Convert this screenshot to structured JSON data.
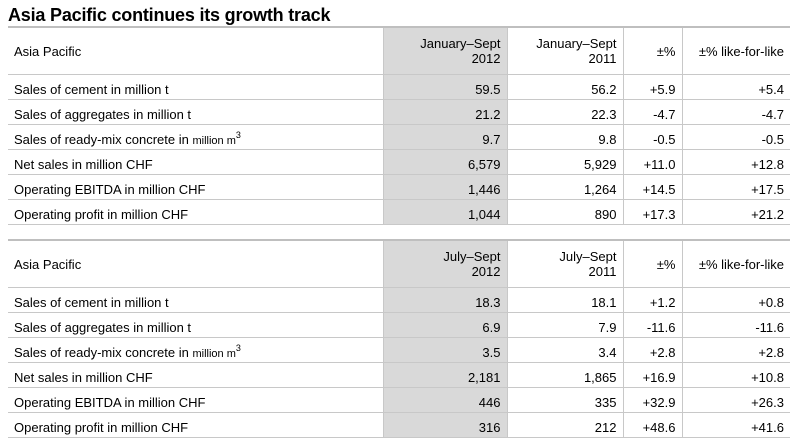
{
  "title": "Asia Pacific continues its growth track",
  "tables": [
    {
      "header": {
        "region": "Asia Pacific",
        "col1_line1": "January–Sept",
        "col1_line2": "2012",
        "col2_line1": "January–Sept",
        "col2_line2": "2011",
        "col3": "±%",
        "col4": "±% like-for-like"
      },
      "rows": [
        {
          "label": "Sales of cement in million t",
          "v2012": "59.5",
          "v2011": "56.2",
          "pct": "+5.9",
          "lfl": "+5.4"
        },
        {
          "label": "Sales of aggregates in million t",
          "v2012": "21.2",
          "v2011": "22.3",
          "pct": "-4.7",
          "lfl": "-4.7"
        },
        {
          "label": "Sales of ready-mix concrete in ",
          "label_small": "million m",
          "label_sup": "3",
          "v2012": "9.7",
          "v2011": "9.8",
          "pct": "-0.5",
          "lfl": "-0.5"
        },
        {
          "label": "Net sales in million CHF",
          "v2012": "6,579",
          "v2011": "5,929",
          "pct": "+11.0",
          "lfl": "+12.8"
        },
        {
          "label": "Operating EBITDA in million CHF",
          "v2012": "1,446",
          "v2011": "1,264",
          "pct": "+14.5",
          "lfl": "+17.5"
        },
        {
          "label": "Operating profit in million CHF",
          "v2012": "1,044",
          "v2011": "890",
          "pct": "+17.3",
          "lfl": "+21.2"
        }
      ]
    },
    {
      "header": {
        "region": "Asia Pacific",
        "col1_line1": "July–Sept",
        "col1_line2": "2012",
        "col2_line1": "July–Sept",
        "col2_line2": "2011",
        "col3": "±%",
        "col4": "±% like-for-like"
      },
      "rows": [
        {
          "label": "Sales of cement in million t",
          "v2012": "18.3",
          "v2011": "18.1",
          "pct": "+1.2",
          "lfl": "+0.8"
        },
        {
          "label": "Sales of aggregates in million t",
          "v2012": "6.9",
          "v2011": "7.9",
          "pct": "-11.6",
          "lfl": "-11.6"
        },
        {
          "label": "Sales of ready-mix concrete in ",
          "label_small": "million m",
          "label_sup": "3",
          "v2012": "3.5",
          "v2011": "3.4",
          "pct": "+2.8",
          "lfl": "+2.8"
        },
        {
          "label": "Net sales in million CHF",
          "v2012": "2,181",
          "v2011": "1,865",
          "pct": "+16.9",
          "lfl": "+10.8"
        },
        {
          "label": "Operating EBITDA in million CHF",
          "v2012": "446",
          "v2011": "335",
          "pct": "+32.9",
          "lfl": "+26.3"
        },
        {
          "label": "Operating profit in million CHF",
          "v2012": "316",
          "v2011": "212",
          "pct": "+48.6",
          "lfl": "+41.6"
        }
      ]
    }
  ]
}
